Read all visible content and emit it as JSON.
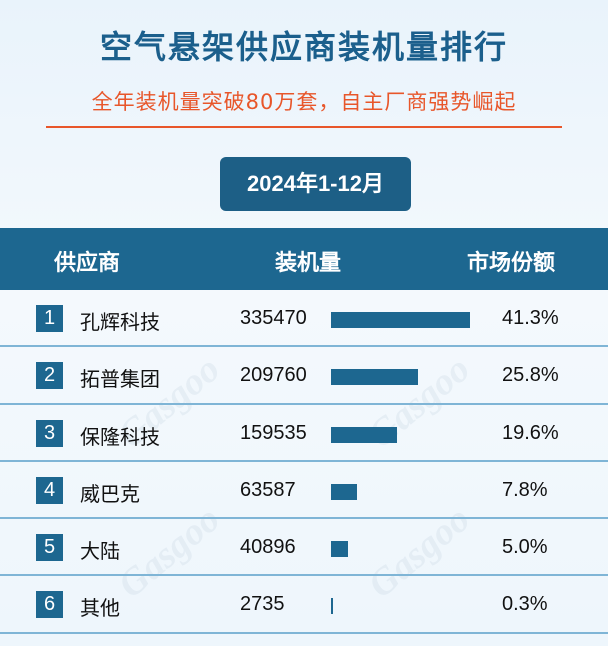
{
  "title": "空气悬架供应商装机量排行",
  "subtitle": "全年装机量突破80万套，自主厂商强势崛起",
  "period": "2024年1-12月",
  "header": {
    "supplier": "供应商",
    "volume": "装机量",
    "share": "市场份额"
  },
  "colors": {
    "title": "#1b5f8c",
    "subtitle": "#e8562a",
    "header_bg": "#1d6790",
    "bar": "#1d6790"
  },
  "chart_data": {
    "type": "bar",
    "title": "空气悬架供应商装机量排行",
    "subtitle": "全年装机量突破80万套，自主厂商强势崛起",
    "categories": [
      "孔辉科技",
      "拓普集团",
      "保隆科技",
      "威巴克",
      "大陆",
      "其他"
    ],
    "ranks": [
      "1",
      "2",
      "3",
      "4",
      "5",
      "6"
    ],
    "values": [
      335470,
      209760,
      159535,
      63587,
      40896,
      2735
    ],
    "value_labels": [
      "335470",
      "209760",
      "159535",
      "63587",
      "40896",
      "2735"
    ],
    "shares": [
      "41.3%",
      "25.8%",
      "19.6%",
      "7.8%",
      "5.0%",
      "0.3%"
    ],
    "orientation": "horizontal",
    "xlabel": "",
    "ylabel": "",
    "xlim": [
      0,
      335470
    ],
    "grid": false,
    "legend": "none"
  },
  "watermark": "Gasgoo 盖世汽车"
}
